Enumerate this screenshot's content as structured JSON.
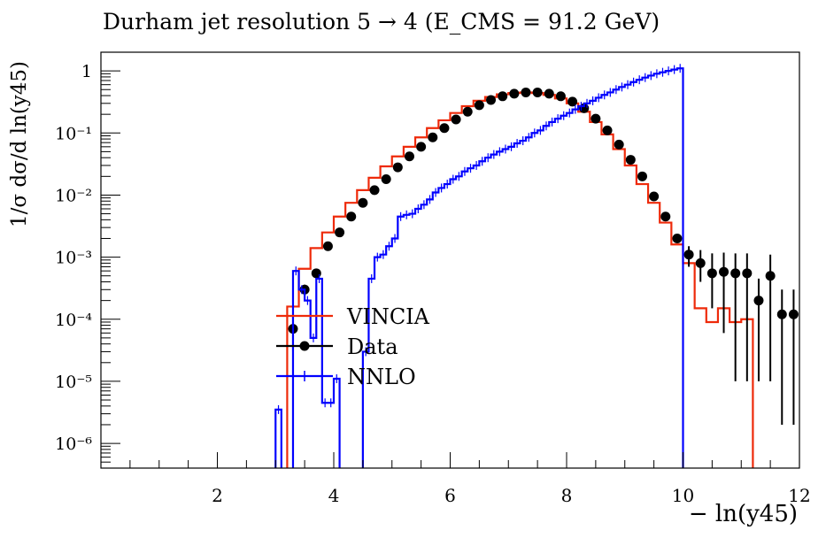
{
  "chart_data": {
    "type": "line",
    "title": "Durham jet resolution 5 → 4 (E_CMS = 91.2 GeV)",
    "xlabel": "− ln(y45)",
    "ylabel": "1/σ dσ/d ln(y45)",
    "xlim": [
      0.0,
      12.0
    ],
    "ylim": [
      4e-07,
      2.0
    ],
    "log_y": true,
    "x_ticks": [
      "2",
      "4",
      "6",
      "8",
      "10",
      "12"
    ],
    "y_ticks": [
      "1",
      "10⁻¹",
      "10⁻²",
      "10⁻³",
      "10⁻⁴",
      "10⁻⁵",
      "10⁻⁶"
    ],
    "grid": false,
    "legend_position": "center-left",
    "series": [
      {
        "name": "VINCIA",
        "color": "#ee2a0a",
        "style": "step",
        "bin_width": 0.2,
        "x": [
          3.3,
          3.5,
          3.7,
          3.9,
          4.1,
          4.3,
          4.5,
          4.7,
          4.9,
          5.1,
          5.3,
          5.5,
          5.7,
          5.9,
          6.1,
          6.3,
          6.5,
          6.7,
          6.9,
          7.1,
          7.3,
          7.5,
          7.7,
          7.9,
          8.1,
          8.3,
          8.5,
          8.7,
          8.9,
          9.1,
          9.3,
          9.5,
          9.7,
          9.9,
          10.1,
          10.3,
          10.5,
          10.7,
          10.9,
          11.1
        ],
        "y": [
          0.00016,
          0.00065,
          0.0014,
          0.0025,
          0.0045,
          0.0075,
          0.012,
          0.019,
          0.029,
          0.042,
          0.06,
          0.085,
          0.12,
          0.16,
          0.21,
          0.27,
          0.33,
          0.38,
          0.42,
          0.44,
          0.45,
          0.44,
          0.41,
          0.36,
          0.3,
          0.22,
          0.15,
          0.095,
          0.055,
          0.03,
          0.015,
          0.0075,
          0.0036,
          0.0016,
          0.0008,
          0.00015,
          9e-05,
          0.00015,
          9e-05,
          0.0001
        ]
      },
      {
        "name": "Data",
        "color": "#000000",
        "style": "points",
        "x": [
          3.3,
          3.5,
          3.7,
          3.9,
          4.1,
          4.3,
          4.5,
          4.7,
          4.9,
          5.1,
          5.3,
          5.5,
          5.7,
          5.9,
          6.1,
          6.3,
          6.5,
          6.7,
          6.9,
          7.1,
          7.3,
          7.5,
          7.7,
          7.9,
          8.1,
          8.3,
          8.5,
          8.7,
          8.9,
          9.1,
          9.3,
          9.5,
          9.7,
          9.9,
          10.1,
          10.3,
          10.5,
          10.7,
          10.9,
          11.1,
          11.3,
          11.5,
          11.7,
          11.9
        ],
        "y": [
          7e-05,
          0.0003,
          0.00055,
          0.0015,
          0.0025,
          0.0045,
          0.0075,
          0.012,
          0.018,
          0.028,
          0.042,
          0.06,
          0.085,
          0.12,
          0.165,
          0.22,
          0.28,
          0.34,
          0.39,
          0.43,
          0.45,
          0.45,
          0.43,
          0.39,
          0.32,
          0.25,
          0.17,
          0.11,
          0.065,
          0.037,
          0.02,
          0.0095,
          0.0045,
          0.002,
          0.0011,
          0.0008,
          0.00055,
          0.00058,
          0.00055,
          0.00055,
          0.0002,
          0.0005,
          0.00012,
          0.00012
        ],
        "err_lo": [
          4e-05,
          6e-05,
          0.0001,
          0.0002,
          0.0003,
          0.0004,
          0.0005,
          0.0007,
          0.0009,
          0.001,
          0.0013,
          0.0015,
          0.002,
          0.002,
          0.003,
          0.004,
          0.004,
          0.005,
          0.005,
          0.005,
          0.005,
          0.005,
          0.005,
          0.005,
          0.005,
          0.004,
          0.003,
          0.002,
          0.0015,
          0.001,
          0.0008,
          0.0006,
          0.0005,
          0.0003,
          0.0004,
          0.0004,
          0.0004,
          0.00052,
          0.00054,
          0.00054,
          0.00019,
          0.00049,
          0.000118,
          0.000118
        ],
        "err_hi": [
          4e-05,
          6e-05,
          0.0001,
          0.0002,
          0.0003,
          0.0004,
          0.0005,
          0.0007,
          0.0009,
          0.001,
          0.0013,
          0.0015,
          0.002,
          0.002,
          0.003,
          0.004,
          0.004,
          0.005,
          0.005,
          0.005,
          0.005,
          0.005,
          0.005,
          0.005,
          0.005,
          0.004,
          0.003,
          0.002,
          0.0015,
          0.001,
          0.0008,
          0.0006,
          0.0005,
          0.0003,
          0.0004,
          0.0005,
          0.0006,
          0.0006,
          0.0006,
          0.0006,
          0.00025,
          0.0006,
          0.00018,
          0.00018
        ]
      },
      {
        "name": "NNLO",
        "color": "#0000ff",
        "style": "step",
        "bin_width": 0.1,
        "x": [
          3.05,
          3.15,
          3.25,
          3.35,
          3.45,
          3.55,
          3.65,
          3.75,
          3.85,
          3.95,
          4.05,
          4.15,
          4.25,
          4.35,
          4.45,
          4.55,
          4.65,
          4.75,
          4.85,
          4.95,
          5.05,
          5.15,
          5.25,
          5.35,
          5.45,
          5.55,
          5.65,
          5.75,
          5.85,
          5.95,
          6.05,
          6.15,
          6.25,
          6.35,
          6.45,
          6.55,
          6.65,
          6.75,
          6.85,
          6.95,
          7.05,
          7.15,
          7.25,
          7.35,
          7.45,
          7.55,
          7.65,
          7.75,
          7.85,
          7.95,
          8.05,
          8.15,
          8.25,
          8.35,
          8.45,
          8.55,
          8.65,
          8.75,
          8.85,
          8.95,
          9.05,
          9.15,
          9.25,
          9.35,
          9.45,
          9.55,
          9.65,
          9.75,
          9.85,
          9.95
        ],
        "y": [
          3.5e-06,
          2e-07,
          2e-07,
          0.0006,
          0.0003,
          0.0002,
          5e-05,
          0.00045,
          4.5e-06,
          4.5e-06,
          1.1e-05,
          2e-07,
          2e-07,
          2e-07,
          2e-07,
          3e-05,
          0.00045,
          0.001,
          0.0011,
          0.0015,
          0.002,
          0.0045,
          0.0048,
          0.005,
          0.006,
          0.007,
          0.0085,
          0.011,
          0.013,
          0.015,
          0.018,
          0.02,
          0.024,
          0.027,
          0.03,
          0.035,
          0.04,
          0.045,
          0.05,
          0.055,
          0.06,
          0.068,
          0.075,
          0.085,
          0.1,
          0.11,
          0.13,
          0.15,
          0.17,
          0.19,
          0.21,
          0.24,
          0.27,
          0.3,
          0.33,
          0.37,
          0.41,
          0.45,
          0.5,
          0.55,
          0.6,
          0.66,
          0.72,
          0.78,
          0.84,
          0.9,
          0.95,
          1.0,
          1.05,
          1.1
        ]
      }
    ]
  }
}
